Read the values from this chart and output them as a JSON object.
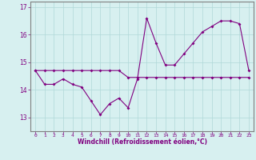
{
  "xlabel": "Windchill (Refroidissement éolien,°C)",
  "x": [
    0,
    1,
    2,
    3,
    4,
    5,
    6,
    7,
    8,
    9,
    10,
    11,
    12,
    13,
    14,
    15,
    16,
    17,
    18,
    19,
    20,
    21,
    22,
    23
  ],
  "line1": [
    14.7,
    14.2,
    14.2,
    14.4,
    14.2,
    14.1,
    13.6,
    13.1,
    13.5,
    13.7,
    13.35,
    14.4,
    16.6,
    15.7,
    14.9,
    14.9,
    15.3,
    15.7,
    16.1,
    16.3,
    16.5,
    16.5,
    16.4,
    14.7
  ],
  "line2": [
    14.7,
    14.7,
    14.7,
    14.7,
    14.7,
    14.7,
    14.7,
    14.7,
    14.7,
    14.7,
    14.45,
    14.45,
    14.45,
    14.45,
    14.45,
    14.45,
    14.45,
    14.45,
    14.45,
    14.45,
    14.45,
    14.45,
    14.45,
    14.45
  ],
  "ylim": [
    12.5,
    17.2
  ],
  "yticks": [
    13,
    14,
    15,
    16,
    17
  ],
  "background_color": "#d7f0f0",
  "line_color": "#800080",
  "grid_color": "#b0d8d8",
  "spine_color": "#808080"
}
